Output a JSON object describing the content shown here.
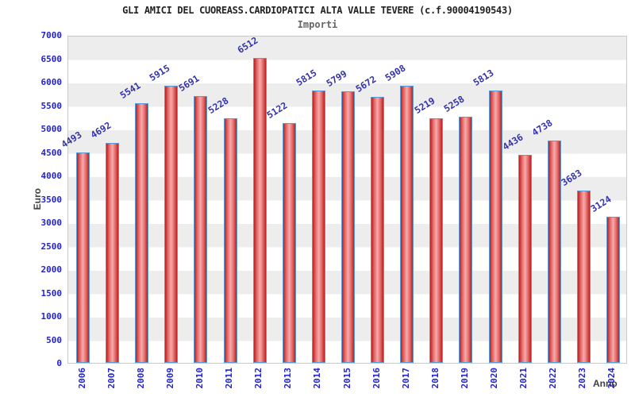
{
  "title": "GLI AMICI DEL CUOREASS.CARDIOPATICI ALTA VALLE TEVERE (c.f.90004190543)",
  "subtitle": "Importi",
  "chart_data": {
    "type": "bar",
    "title": "GLI AMICI DEL CUOREASS.CARDIOPATICI ALTA VALLE TEVERE (c.f.90004190543)",
    "subtitle": "Importi",
    "xlabel": "Anno",
    "ylabel": "Euro",
    "categories": [
      "2006",
      "2007",
      "2008",
      "2009",
      "2010",
      "2011",
      "2012",
      "2013",
      "2014",
      "2015",
      "2016",
      "2017",
      "2018",
      "2019",
      "2020",
      "2021",
      "2022",
      "2023",
      "2024"
    ],
    "values": [
      4493,
      4692,
      5541,
      5915,
      5691,
      5228,
      6512,
      5122,
      5815,
      5799,
      5672,
      5908,
      5219,
      5258,
      5813,
      4436,
      4738,
      3683,
      3124
    ],
    "ylim": [
      0,
      7000
    ],
    "ytick_step": 500,
    "grid": "alternating-horizontal-bands",
    "legend": "none",
    "colors": {
      "bar_fill_dark": "#b92020",
      "bar_fill_light": "#f7abab",
      "bar_border": "#5b9bd5",
      "value_label": "#3333aa",
      "tick_label": "#2323cd",
      "axis_label": "#404040",
      "band_gray": "#ededed",
      "plot_border": "#c9c9c9"
    }
  }
}
